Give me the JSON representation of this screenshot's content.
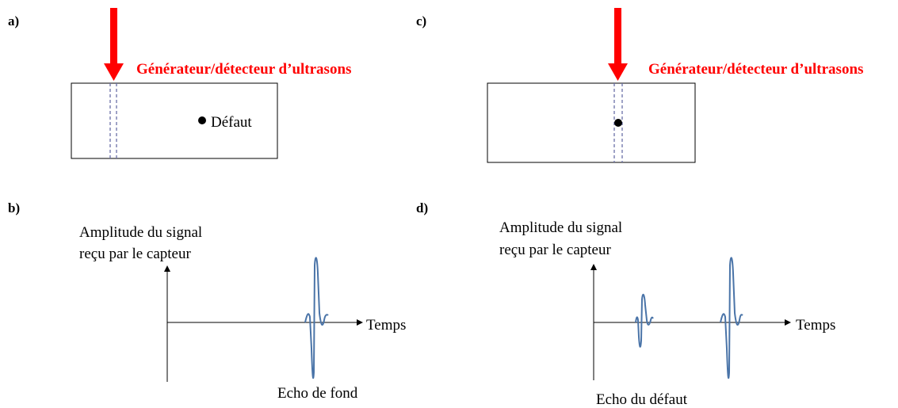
{
  "panels": [
    {
      "label": "a)",
      "probe": "Générateur/détecteur d’ultrasons",
      "defect": "Défaut"
    },
    {
      "label": "b)",
      "y_axis": [
        "Amplitude du signal",
        "reçu par le capteur"
      ],
      "x_axis": "Temps",
      "echo": "Echo de fond"
    },
    {
      "label": "c)",
      "probe": "Générateur/détecteur d’ultrasons"
    },
    {
      "label": "d)",
      "y_axis": [
        "Amplitude du signal",
        "reçu par le capteur"
      ],
      "x_axis": "Temps",
      "echo": "Echo du défaut"
    }
  ]
}
